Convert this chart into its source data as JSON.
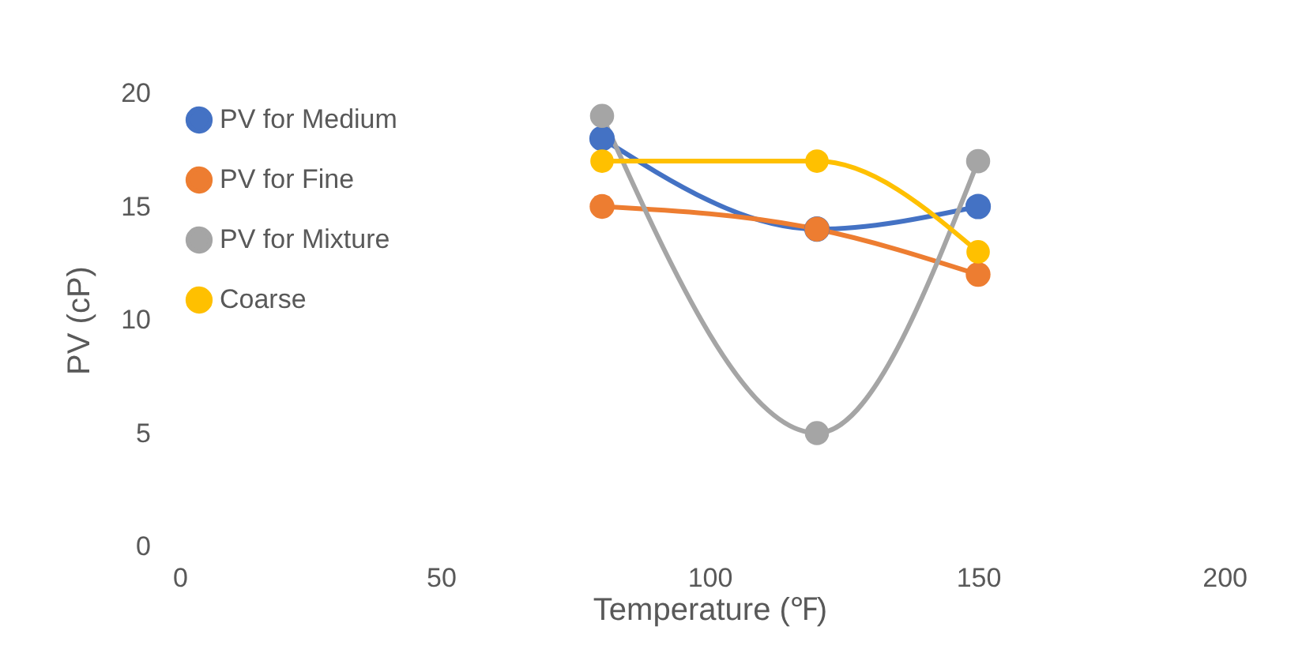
{
  "chart_data": {
    "type": "line",
    "xlabel": "Temperature (℉)",
    "ylabel": "PV (cP)",
    "x": [
      80,
      120,
      150
    ],
    "series": [
      {
        "name": "PV for Medium",
        "color": "#4472c4",
        "values": [
          18,
          14,
          15
        ]
      },
      {
        "name": "PV for Fine",
        "color": "#ed7d31",
        "values": [
          15,
          14,
          12
        ]
      },
      {
        "name": "PV for Mixture",
        "color": "#a5a5a5",
        "values": [
          19,
          5,
          17
        ]
      },
      {
        "name": "Coarse",
        "color": "#ffc000",
        "values": [
          17,
          17,
          13
        ]
      }
    ],
    "xlim": [
      0,
      200
    ],
    "xticks": [
      0,
      50,
      100,
      150,
      200
    ],
    "ylim": [
      0,
      20
    ],
    "yticks": [
      0,
      5,
      10,
      15,
      20
    ],
    "legend": "top left",
    "marker": "circle",
    "line_style": "solid"
  }
}
